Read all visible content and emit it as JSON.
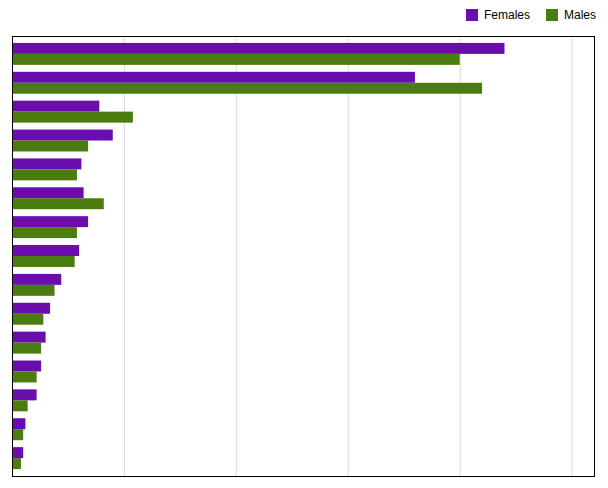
{
  "chart_data": {
    "type": "bar",
    "orientation": "horizontal",
    "categories": [
      null,
      null,
      null,
      null,
      null,
      null,
      null,
      null,
      null,
      null,
      null,
      null,
      null,
      null,
      null
    ],
    "series": [
      {
        "name": "Females",
        "color": "#6a0dad",
        "values": [
          22000,
          18000,
          3900,
          4500,
          3100,
          3200,
          3400,
          3000,
          2200,
          1700,
          1500,
          1300,
          1100,
          600,
          500
        ]
      },
      {
        "name": "Males",
        "color": "#4a7c10",
        "values": [
          20000,
          21000,
          5400,
          3400,
          2900,
          4100,
          2900,
          2800,
          1900,
          1400,
          1300,
          1100,
          700,
          500,
          400
        ]
      }
    ],
    "xlim": [
      0,
      26000
    ],
    "xticks": [
      0,
      5000,
      10000,
      15000,
      20000,
      25000
    ],
    "grid": true,
    "legend": "upper right",
    "tick_labels": false
  }
}
